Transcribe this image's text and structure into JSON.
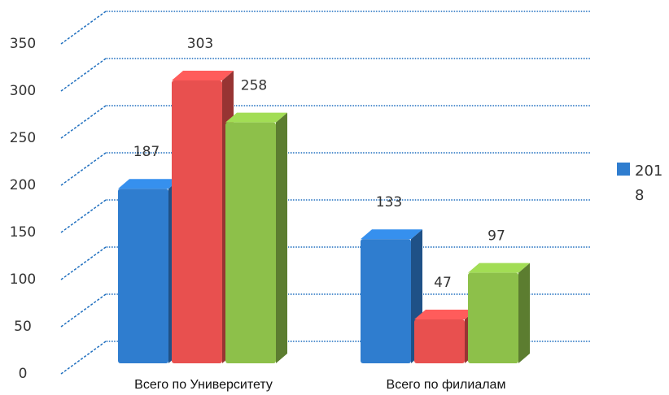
{
  "chart_data": {
    "type": "bar3d",
    "categories": [
      "Всего по Университету",
      "Всего по филиалам"
    ],
    "series": [
      {
        "name": "2018",
        "color": "#2f7dcf",
        "values": [
          187,
          133
        ]
      },
      {
        "color": "#e8504f",
        "values": [
          303,
          47
        ]
      },
      {
        "color": "#8dc04a",
        "values": [
          258,
          97
        ]
      }
    ],
    "ylim": [
      0,
      350
    ],
    "yticks": [
      0,
      50,
      100,
      150,
      200,
      250,
      300,
      350
    ],
    "grid": true,
    "legend": "right"
  }
}
